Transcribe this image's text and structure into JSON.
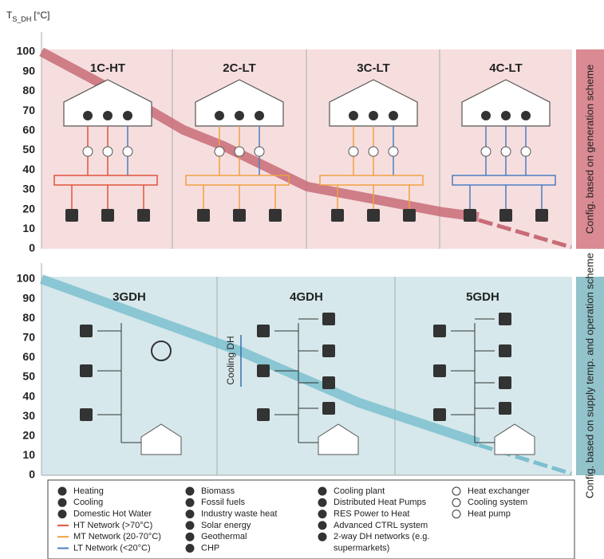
{
  "axis_label": {
    "main": "T",
    "sub": "S_DH",
    "unit": "[°C]"
  },
  "top_panel": {
    "ticks": [
      "100",
      "90",
      "80",
      "70",
      "60",
      "50",
      "40",
      "30",
      "20",
      "10",
      "0"
    ],
    "columns": [
      "1C-HT",
      "2C-LT",
      "3C-LT",
      "4C-LT"
    ],
    "side_label": "Config. based on generation scheme"
  },
  "bottom_panel": {
    "ticks": [
      "100",
      "90",
      "80",
      "70",
      "60",
      "50",
      "40",
      "30",
      "20",
      "10",
      "0"
    ],
    "columns": [
      "3GDH",
      "4GDH",
      "5GDH"
    ],
    "side_label": "Config. based on supply temp. and operation scheme",
    "cooling_label": "Cooling DH"
  },
  "legend": [
    [
      "Heating",
      "Cooling",
      "Domestic Hot Water",
      "HT Network (>70°C)",
      "MT Network (20-70°C)",
      "LT Network (<20°C)"
    ],
    [
      "Biomass",
      "Fossil fuels",
      "Industry waste heat",
      "Solar energy",
      "Geothermal",
      "CHP"
    ],
    [
      "Cooling plant",
      "Distributed Heat Pumps",
      "RES Power to Heat",
      "Advanced CTRL system",
      "2-way DH networks (e.g.",
      "supermarkets)"
    ],
    [
      "Heat exchanger",
      "Cooling system",
      "Heat pump"
    ]
  ]
}
